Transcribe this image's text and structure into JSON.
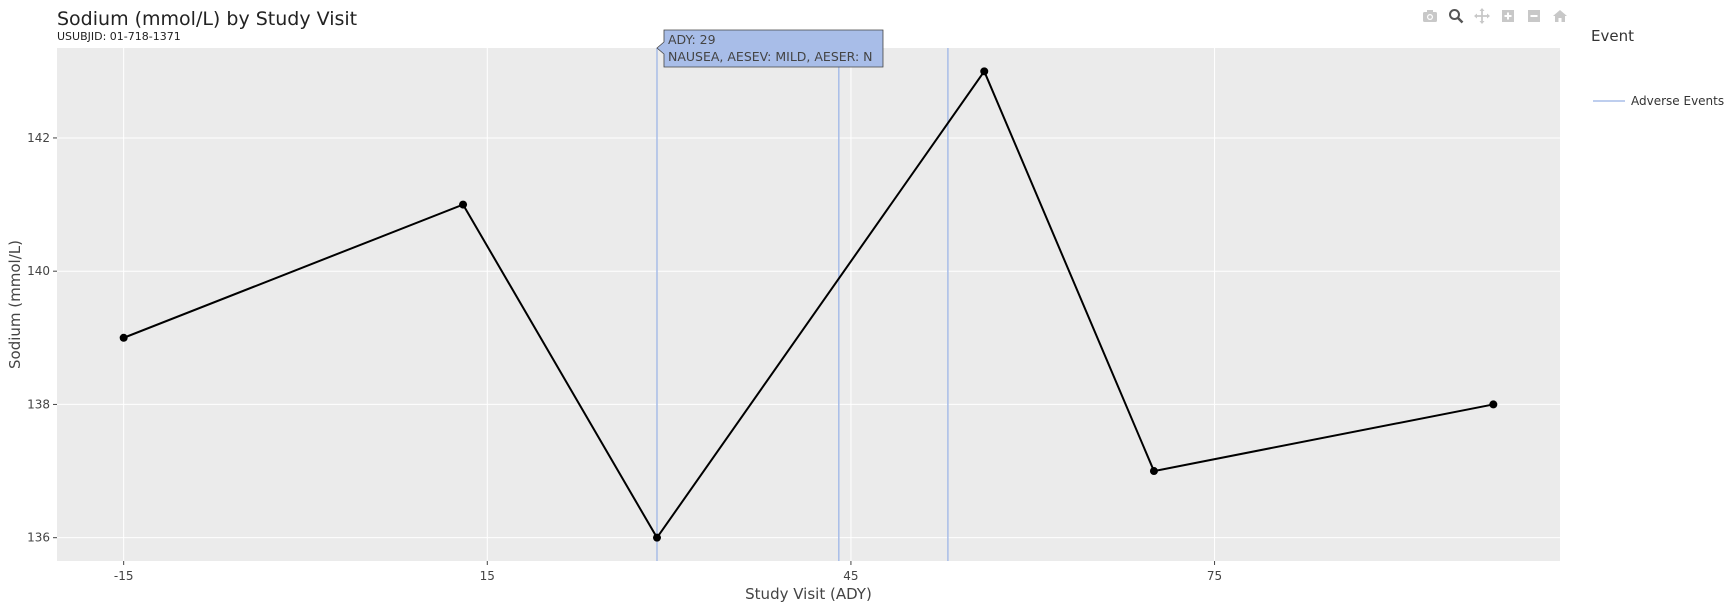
{
  "chart_data": {
    "type": "line",
    "title": "Sodium (mmol/L) by Study Visit",
    "subtitle": "USUBJID: 01-718-1371",
    "xlabel": "Study Visit (ADY)",
    "ylabel": "Sodium (mmol/L)",
    "xlim": [
      -20.5,
      103.5
    ],
    "ylim": [
      135.65,
      143.35
    ],
    "xticks": [
      -15,
      15,
      45,
      75
    ],
    "yticks": [
      136,
      138,
      140,
      142
    ],
    "grid": true,
    "x": [
      -15,
      13,
      29,
      56,
      70,
      98
    ],
    "y": [
      139,
      141,
      136,
      143,
      137,
      138
    ],
    "line_color": "#000000",
    "events": {
      "name": "Adverse Events",
      "color": "#a8bde8",
      "ady": [
        29,
        44,
        53
      ]
    },
    "legend": {
      "title": "Event",
      "items": [
        "Adverse Events"
      ],
      "placement": "top-right"
    },
    "tooltip": {
      "line1": "ADY: 29",
      "line2": "NAUSEA, AESEV: MILD, AESER: N",
      "x": 29,
      "bg": "#a8bde8"
    }
  },
  "modebar": [
    {
      "name": "camera-icon",
      "label": "Download plot as a png"
    },
    {
      "name": "zoom-icon",
      "label": "Zoom"
    },
    {
      "name": "pan-icon",
      "label": "Pan"
    },
    {
      "name": "zoom-in-icon",
      "label": "Zoom in"
    },
    {
      "name": "zoom-out-icon",
      "label": "Zoom out"
    },
    {
      "name": "home-icon",
      "label": "Reset axes"
    }
  ]
}
